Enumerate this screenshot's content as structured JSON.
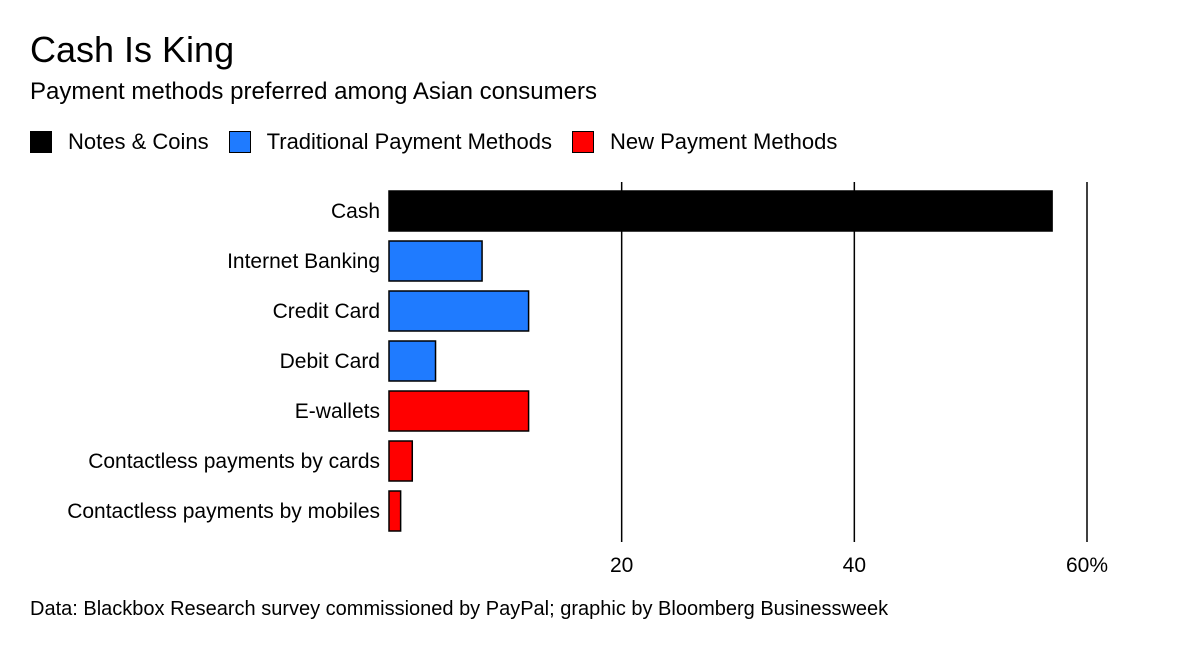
{
  "header": {
    "title": "Cash Is King",
    "subtitle": "Payment methods preferred among Asian consumers"
  },
  "legend": [
    {
      "label": "Notes & Coins",
      "color": "#000000"
    },
    {
      "label": "Traditional Payment Methods",
      "color": "#1f7bff"
    },
    {
      "label": "New Payment Methods",
      "color": "#ff0000"
    }
  ],
  "chart_data": {
    "type": "bar",
    "orientation": "horizontal",
    "categories": [
      "Cash",
      "Internet Banking",
      "Credit Card",
      "Debit Card",
      "E-wallets",
      "Contactless payments by cards",
      "Contactless payments by mobiles"
    ],
    "values": [
      57,
      8,
      12,
      4,
      12,
      2,
      1
    ],
    "groups": [
      "Notes & Coins",
      "Traditional Payment Methods",
      "Traditional Payment Methods",
      "Traditional Payment Methods",
      "New Payment Methods",
      "New Payment Methods",
      "New Payment Methods"
    ],
    "xlim": [
      0,
      60
    ],
    "ticks": [
      20,
      40,
      60
    ],
    "tick_labels": [
      "20",
      "40",
      "60%"
    ],
    "grid": true,
    "legend_position": "top-left"
  },
  "footer": {
    "source": "Data: Blackbox Research survey commissioned by PayPal; graphic by Bloomberg Businessweek"
  }
}
